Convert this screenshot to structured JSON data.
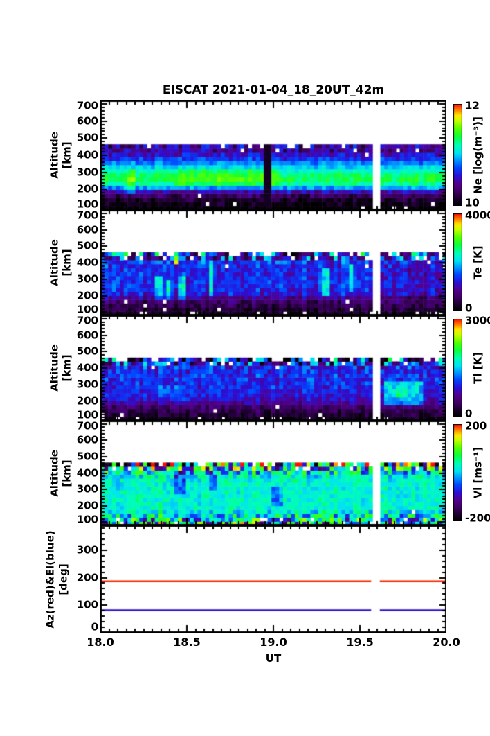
{
  "title": "EISCAT 2021-01-04_18_20UT_42m",
  "xlabel": "UT",
  "x_axis": {
    "min": 18.0,
    "max": 20.0,
    "major_ticks": [
      18.0,
      18.5,
      19.0,
      19.5,
      20.0
    ],
    "tick_labels": [
      "18.0",
      "18.5",
      "19.0",
      "19.5",
      "20.0"
    ],
    "minor_step": 0.05
  },
  "data_gap_ut": [
    19.565,
    19.615
  ],
  "colors": {
    "axis": "#000000",
    "background": "#ffffff",
    "az_line": "#f22800",
    "el_line": "#3214c8"
  },
  "colormap_stops": [
    [
      0.0,
      "#000000"
    ],
    [
      0.06,
      "#140022"
    ],
    [
      0.14,
      "#3c0060"
    ],
    [
      0.22,
      "#52008c"
    ],
    [
      0.3,
      "#2a10d8"
    ],
    [
      0.38,
      "#0048ff"
    ],
    [
      0.46,
      "#00a0ff"
    ],
    [
      0.52,
      "#00e4f0"
    ],
    [
      0.6,
      "#00ffb4"
    ],
    [
      0.68,
      "#0cff3c"
    ],
    [
      0.76,
      "#55ff00"
    ],
    [
      0.84,
      "#c8ff00"
    ],
    [
      0.89,
      "#ffe800"
    ],
    [
      0.94,
      "#ff8800"
    ],
    [
      1.0,
      "#ff0f00"
    ]
  ],
  "chart_data": [
    {
      "type": "heatmap",
      "name": "Ne",
      "ylabel_lines": [
        "Altitude",
        "[km]"
      ],
      "y_range": [
        80,
        720
      ],
      "y_major_ticks": [
        100,
        200,
        300,
        400,
        500,
        600,
        700
      ],
      "y_minor_step": 20,
      "data_alt_range": [
        80,
        464
      ],
      "scale": {
        "min": 10,
        "max": 12,
        "label": "Ne [log(m⁻³)]",
        "tick_top": "12",
        "tick_bottom": "10"
      },
      "col_noise": 0.06,
      "seed": 7,
      "bands": [
        [
          80,
          104,
          10.03,
          0.08,
          0.05
        ],
        [
          104,
          128,
          10.08,
          0.1,
          0.03
        ],
        [
          128,
          152,
          10.15,
          0.12,
          0.02
        ],
        [
          152,
          176,
          10.28,
          0.14,
          0.01
        ],
        [
          176,
          200,
          10.52,
          0.15,
          0.0
        ],
        [
          200,
          224,
          10.92,
          0.12,
          0.0
        ],
        [
          224,
          248,
          11.22,
          0.1,
          0.0
        ],
        [
          248,
          272,
          11.34,
          0.09,
          0.0
        ],
        [
          272,
          296,
          11.3,
          0.09,
          0.0
        ],
        [
          296,
          320,
          11.16,
          0.09,
          0.0
        ],
        [
          320,
          344,
          11.02,
          0.1,
          0.0
        ],
        [
          344,
          368,
          10.86,
          0.11,
          0.0
        ],
        [
          368,
          392,
          10.7,
          0.13,
          0.0
        ],
        [
          392,
          416,
          10.58,
          0.15,
          0.01
        ],
        [
          416,
          440,
          10.45,
          0.22,
          0.04
        ],
        [
          440,
          464,
          10.47,
          0.3,
          0.1
        ]
      ],
      "features": [
        {
          "ut": [
            18.42,
            19.03
          ],
          "alt": [
            224,
            308
          ],
          "add": 0.14
        },
        {
          "ut": [
            18.16,
            18.2
          ],
          "alt": [
            176,
            308
          ],
          "add": 0.22
        },
        {
          "ut": [
            18.945,
            18.98
          ],
          "alt": [
            80,
            464
          ],
          "set_t": 0.06
        }
      ]
    },
    {
      "type": "heatmap",
      "name": "Te",
      "ylabel_lines": [
        "Altitude",
        "[km]"
      ],
      "y_range": [
        80,
        720
      ],
      "y_major_ticks": [
        100,
        200,
        300,
        400,
        500,
        600,
        700
      ],
      "y_minor_step": 20,
      "data_alt_range": [
        80,
        464
      ],
      "scale": {
        "min": 0,
        "max": 4000,
        "label": "Te [K]",
        "tick_top": "4000",
        "tick_bottom": "0"
      },
      "col_noise": 170,
      "seed": 11,
      "bands": [
        [
          80,
          104,
          260,
          190,
          0.12
        ],
        [
          104,
          128,
          340,
          210,
          0.05
        ],
        [
          128,
          152,
          480,
          230,
          0.02
        ],
        [
          152,
          176,
          640,
          250,
          0.01
        ],
        [
          176,
          200,
          900,
          280,
          0.0
        ],
        [
          200,
          224,
          1250,
          280,
          0.0
        ],
        [
          224,
          248,
          1350,
          280,
          0.0
        ],
        [
          248,
          272,
          1380,
          280,
          0.0
        ],
        [
          272,
          296,
          1380,
          290,
          0.0
        ],
        [
          296,
          320,
          1360,
          290,
          0.0
        ],
        [
          320,
          344,
          1340,
          300,
          0.0
        ],
        [
          344,
          368,
          1330,
          300,
          0.0
        ],
        [
          368,
          392,
          1350,
          330,
          0.01
        ],
        [
          392,
          416,
          1420,
          430,
          0.02
        ],
        [
          416,
          440,
          1350,
          950,
          0.1
        ],
        [
          440,
          464,
          1500,
          1400,
          0.22
        ]
      ],
      "features": [
        {
          "ut": [
            18.32,
            18.35
          ],
          "alt": [
            176,
            320
          ],
          "add": 800
        },
        {
          "ut": [
            18.385,
            18.41
          ],
          "alt": [
            176,
            300
          ],
          "add": 800
        },
        {
          "ut": [
            18.46,
            18.485
          ],
          "alt": [
            176,
            330
          ],
          "add": 800
        },
        {
          "ut": [
            18.63,
            18.66
          ],
          "alt": [
            200,
            420
          ],
          "add": 800
        },
        {
          "ut": [
            19.29,
            19.32
          ],
          "alt": [
            200,
            360
          ],
          "add": 800
        },
        {
          "ut": [
            19.445,
            19.47
          ],
          "alt": [
            220,
            400
          ],
          "add": 800
        },
        {
          "ut": [
            18.435,
            18.46
          ],
          "alt": [
            392,
            440
          ],
          "add": 2200
        },
        {
          "ut": [
            19.615,
            20.0
          ],
          "alt": [
            176,
            416
          ],
          "add": -200
        }
      ]
    },
    {
      "type": "heatmap",
      "name": "Ti",
      "ylabel_lines": [
        "Altitude",
        "[km]"
      ],
      "y_range": [
        80,
        720
      ],
      "y_major_ticks": [
        100,
        200,
        300,
        400,
        500,
        600,
        700
      ],
      "y_minor_step": 20,
      "data_alt_range": [
        80,
        464
      ],
      "scale": {
        "min": 0,
        "max": 3000,
        "label": "Ti [K]",
        "tick_top": "3000",
        "tick_bottom": "0"
      },
      "col_noise": 110,
      "seed": 13,
      "bands": [
        [
          80,
          104,
          170,
          120,
          0.1
        ],
        [
          104,
          128,
          250,
          140,
          0.04
        ],
        [
          128,
          152,
          360,
          160,
          0.02
        ],
        [
          152,
          176,
          500,
          180,
          0.01
        ],
        [
          176,
          200,
          680,
          200,
          0.0
        ],
        [
          200,
          224,
          850,
          200,
          0.0
        ],
        [
          224,
          248,
          930,
          210,
          0.0
        ],
        [
          248,
          272,
          960,
          210,
          0.0
        ],
        [
          272,
          296,
          990,
          220,
          0.0
        ],
        [
          296,
          320,
          1010,
          230,
          0.0
        ],
        [
          320,
          344,
          1020,
          240,
          0.0
        ],
        [
          344,
          368,
          1020,
          250,
          0.0
        ],
        [
          368,
          392,
          1010,
          280,
          0.01
        ],
        [
          392,
          416,
          980,
          380,
          0.02
        ],
        [
          416,
          440,
          900,
          800,
          0.1
        ],
        [
          440,
          464,
          950,
          1050,
          0.22
        ]
      ],
      "features": [
        {
          "ut": [
            19.64,
            19.86
          ],
          "alt": [
            176,
            330
          ],
          "add": 520
        },
        {
          "ut": [
            19.7,
            19.78
          ],
          "alt": [
            224,
            300
          ],
          "add": 350
        },
        {
          "ut": [
            18.3,
            18.52
          ],
          "alt": [
            200,
            296
          ],
          "add": 160
        }
      ]
    },
    {
      "type": "heatmap",
      "name": "Vi",
      "ylabel_lines": [
        "Altitude",
        "[km]"
      ],
      "y_range": [
        80,
        720
      ],
      "y_major_ticks": [
        100,
        200,
        300,
        400,
        500,
        600,
        700
      ],
      "y_minor_step": 20,
      "data_alt_range": [
        80,
        464
      ],
      "scale": {
        "min": -200,
        "max": 200,
        "label": "Vi [ms⁻¹]",
        "tick_top": "200",
        "tick_bottom": "-200"
      },
      "col_noise": 9,
      "seed": 17,
      "bands": [
        [
          80,
          104,
          0,
          170,
          0.1
        ],
        [
          104,
          128,
          8,
          130,
          0.05
        ],
        [
          128,
          152,
          15,
          85,
          0.02
        ],
        [
          152,
          176,
          22,
          48,
          0.01
        ],
        [
          176,
          200,
          26,
          30,
          0.0
        ],
        [
          200,
          224,
          27,
          26,
          0.0
        ],
        [
          224,
          248,
          27,
          26,
          0.0
        ],
        [
          248,
          272,
          26,
          26,
          0.0
        ],
        [
          272,
          296,
          26,
          27,
          0.0
        ],
        [
          296,
          320,
          25,
          28,
          0.0
        ],
        [
          320,
          344,
          24,
          30,
          0.0
        ],
        [
          344,
          368,
          24,
          34,
          0.0
        ],
        [
          368,
          392,
          22,
          45,
          0.0
        ],
        [
          392,
          416,
          18,
          95,
          0.02
        ],
        [
          416,
          440,
          8,
          165,
          0.06
        ],
        [
          440,
          464,
          0,
          245,
          0.1
        ]
      ],
      "features": [
        {
          "ut": [
            18.42,
            18.5
          ],
          "alt": [
            272,
            416
          ],
          "add": -70
        },
        {
          "ut": [
            18.98,
            19.06
          ],
          "alt": [
            200,
            320
          ],
          "add": -55
        },
        {
          "ut": [
            18.63,
            18.68
          ],
          "alt": [
            296,
            416
          ],
          "add": -50
        }
      ]
    },
    {
      "type": "line",
      "name": "AzEl",
      "ylabel_lines": [
        "Az(red)&El(blue)",
        "[deg]"
      ],
      "y_range": [
        0,
        390
      ],
      "y_major_ticks": [
        0,
        100,
        200,
        300
      ],
      "y_minor_step": 20,
      "series": [
        {
          "name": "Az",
          "value": 187,
          "color_key": "az_line"
        },
        {
          "name": "El",
          "value": 82,
          "color_key": "el_line"
        }
      ]
    }
  ]
}
